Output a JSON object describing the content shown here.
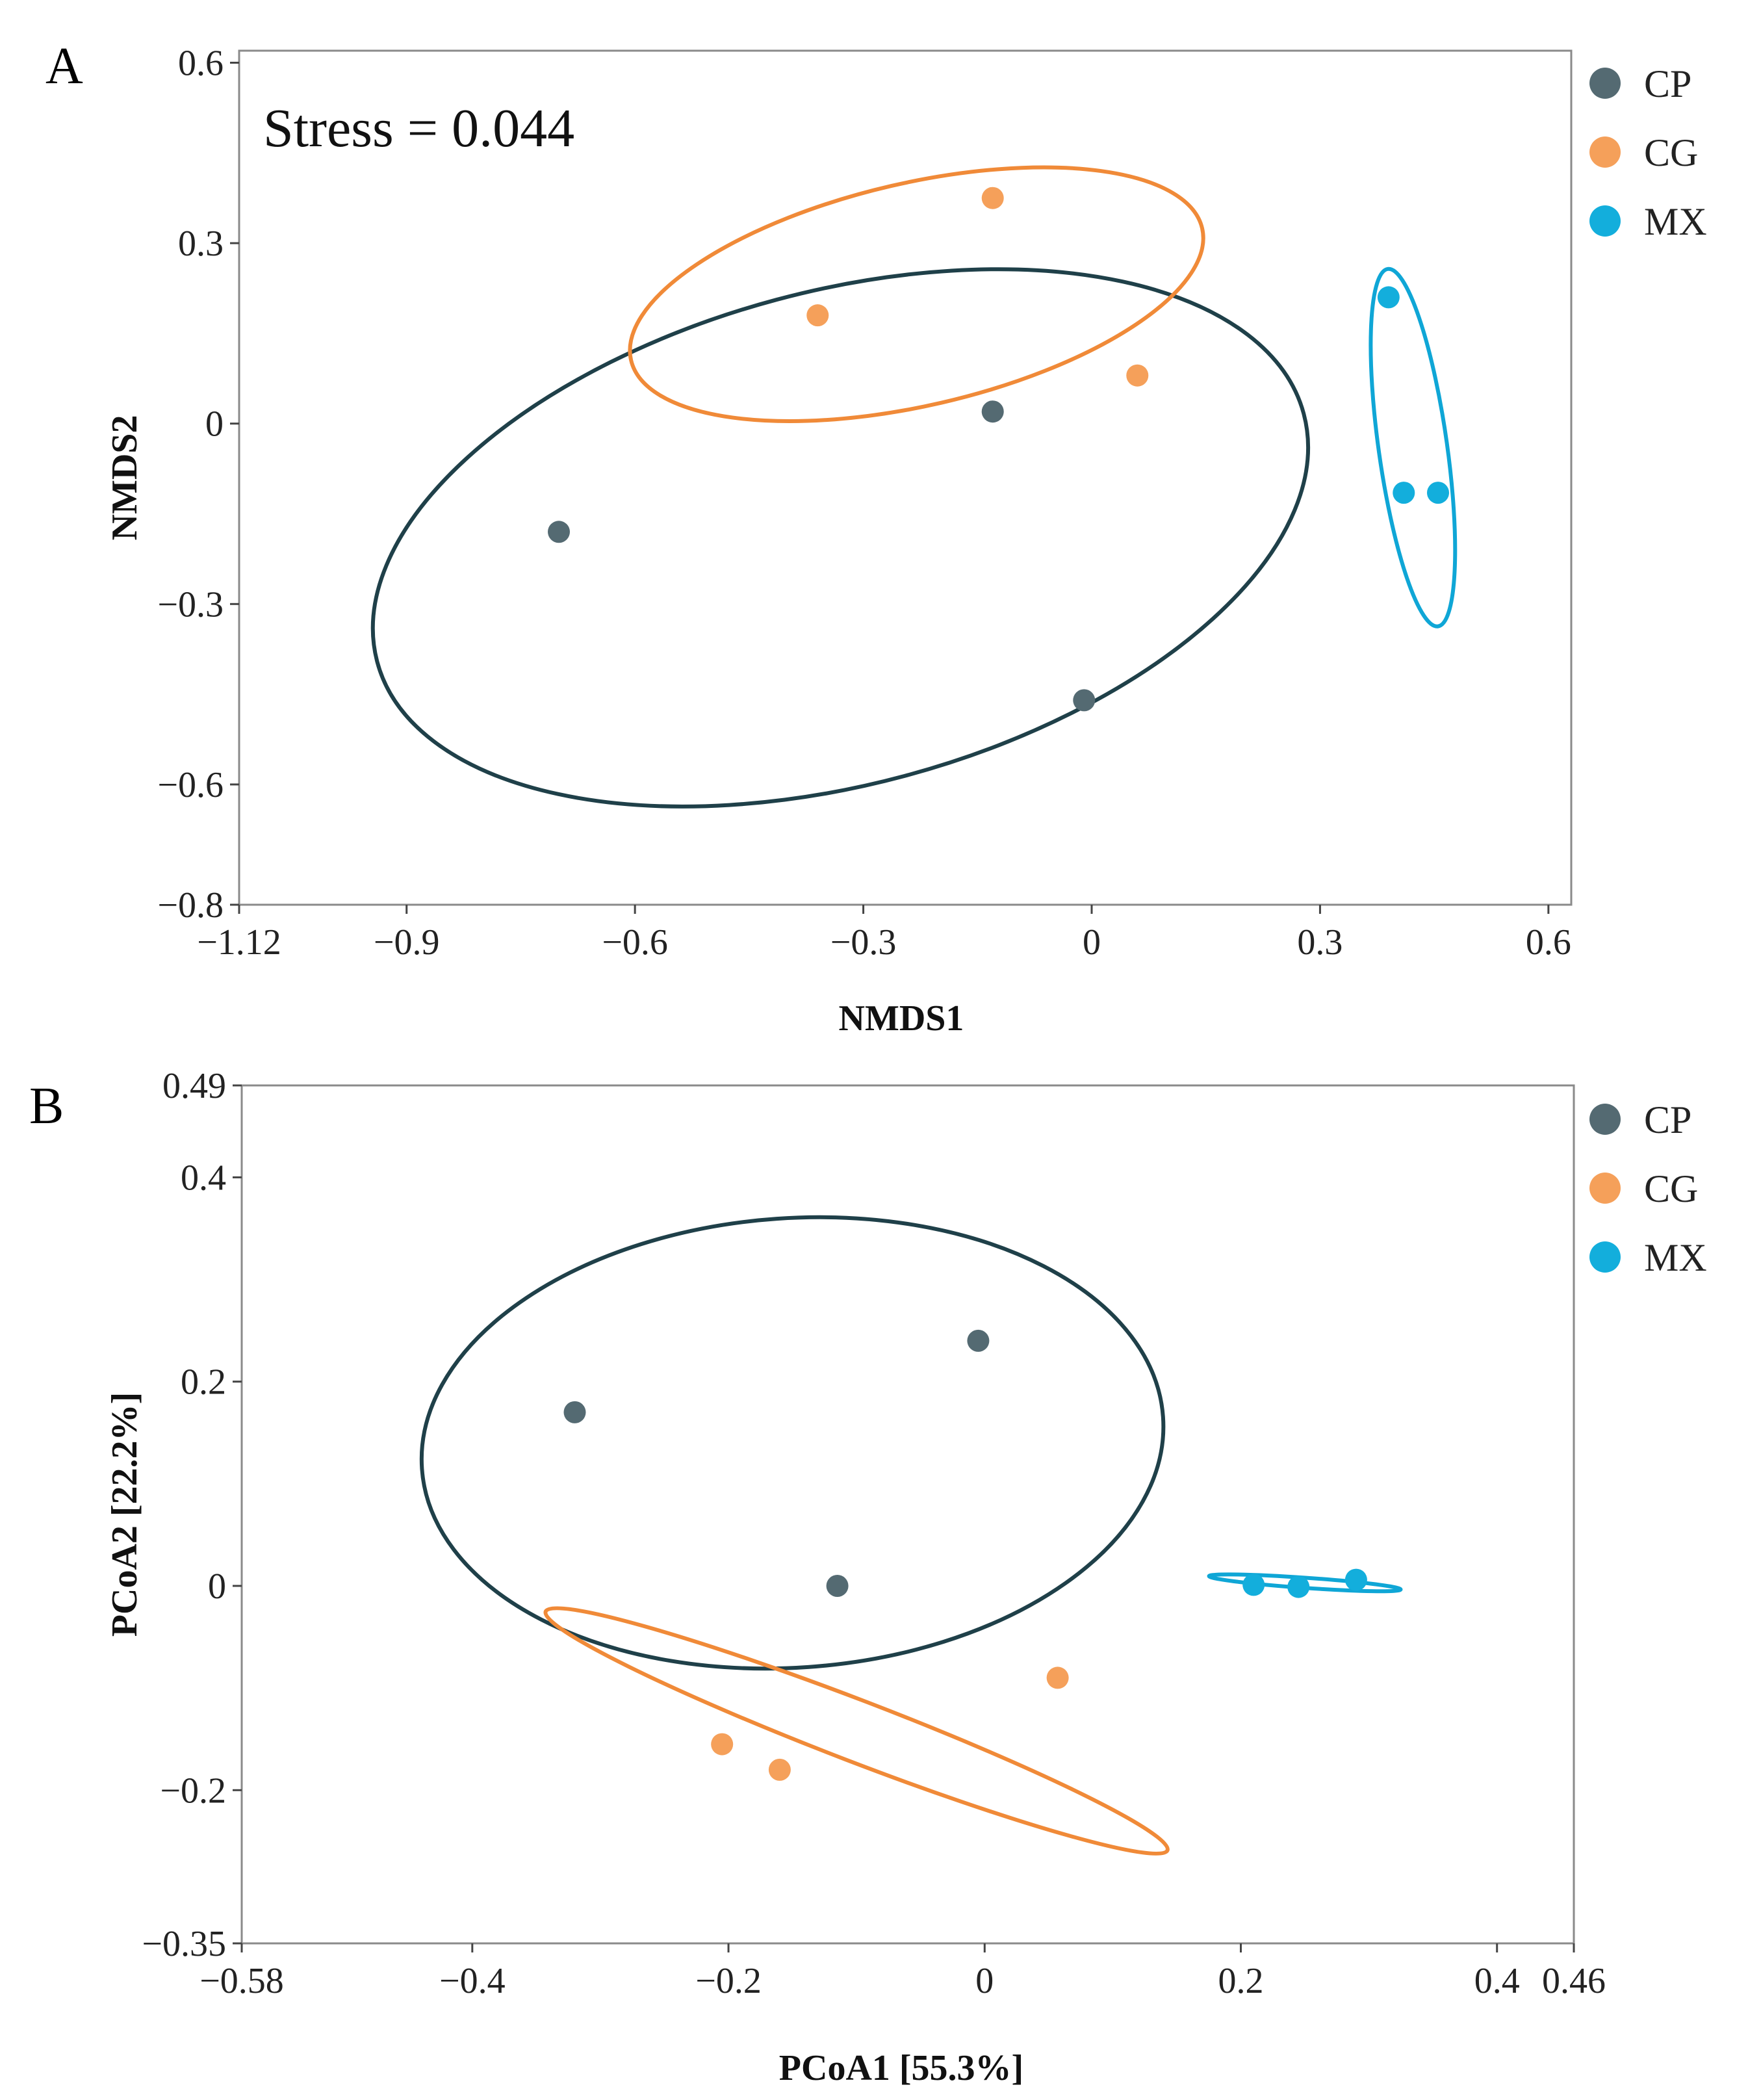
{
  "chart_data": [
    {
      "panel": "A",
      "type": "scatter",
      "title": "",
      "xlabel": "NMDS1",
      "ylabel": "NMDS2",
      "xlim": [
        -1.12,
        0.63
      ],
      "ylim": [
        -0.8,
        0.62
      ],
      "xticks": [
        -1.12,
        -0.9,
        -0.6,
        -0.3,
        0,
        0.3,
        0.6
      ],
      "xtick_labels": [
        "−1.12",
        "−0.9",
        "−0.6",
        "−0.3",
        "0",
        "0.3",
        "0.6"
      ],
      "yticks": [
        -0.8,
        -0.6,
        -0.3,
        0,
        0.3,
        0.6
      ],
      "ytick_labels": [
        "−0.8",
        "−0.6",
        "−0.3",
        "0",
        "0.3",
        "0.6"
      ],
      "annotation": "Stress = 0.044",
      "legend": [
        "CP",
        "CG",
        "MX"
      ],
      "series": [
        {
          "name": "CP",
          "color": "#546a72",
          "ellipse_color": "#1f4049",
          "points": [
            [
              -0.7,
              -0.18
            ],
            [
              -0.13,
              0.02
            ],
            [
              -0.01,
              -0.46
            ]
          ],
          "ellipse": {
            "center": [
              -0.33,
              -0.19
            ],
            "rx": 0.63,
            "ry": 0.41,
            "angle_deg": -15
          }
        },
        {
          "name": "CG",
          "color": "#f5a05a",
          "ellipse_color": "#f08a38",
          "points": [
            [
              -0.36,
              0.18
            ],
            [
              -0.13,
              0.375
            ],
            [
              0.06,
              0.08
            ]
          ],
          "ellipse": {
            "center": [
              -0.23,
              0.215
            ],
            "rx": 0.385,
            "ry": 0.185,
            "angle_deg": -13
          }
        },
        {
          "name": "MX",
          "color": "#13aedc",
          "ellipse_color": "#0fa6d6",
          "points": [
            [
              0.39,
              0.21
            ],
            [
              0.41,
              -0.115
            ],
            [
              0.455,
              -0.115
            ]
          ],
          "ellipse": {
            "center": [
              0.422,
              -0.04
            ],
            "rx": 0.045,
            "ry": 0.3,
            "angle_deg": -8
          }
        }
      ]
    },
    {
      "panel": "B",
      "type": "scatter",
      "title": "",
      "xlabel": "PCoA1 [55.3%]",
      "ylabel": "PCoA2 [22.2%]",
      "xlim": [
        -0.58,
        0.46
      ],
      "ylim": [
        -0.35,
        0.49
      ],
      "xticks": [
        -0.58,
        -0.4,
        -0.2,
        0,
        0.2,
        0.4,
        0.46
      ],
      "xtick_labels": [
        "−0.58",
        "−0.4",
        "−0.2",
        "0",
        "0.2",
        "0.4",
        "0.46"
      ],
      "yticks": [
        -0.35,
        -0.2,
        0,
        0.2,
        0.4,
        0.49
      ],
      "ytick_labels": [
        "−0.35",
        "−0.2",
        "0",
        "0.2",
        "0.4",
        "0.49"
      ],
      "legend": [
        "CP",
        "CG",
        "MX"
      ],
      "series": [
        {
          "name": "CP",
          "color": "#546a72",
          "ellipse_color": "#1f4049",
          "points": [
            [
              -0.32,
              0.17
            ],
            [
              -0.005,
              0.24
            ],
            [
              -0.115,
              0.0
            ]
          ],
          "ellipse": {
            "center": [
              -0.15,
              0.14
            ],
            "rx": 0.29,
            "ry": 0.22,
            "angle_deg": -4
          }
        },
        {
          "name": "CG",
          "color": "#f5a05a",
          "ellipse_color": "#f08a38",
          "points": [
            [
              -0.205,
              -0.155
            ],
            [
              -0.16,
              -0.18
            ],
            [
              0.057,
              -0.09
            ]
          ],
          "ellipse": {
            "center": [
              -0.1,
              -0.142
            ],
            "rx": 0.26,
            "ry": 0.03,
            "angle_deg": 21
          }
        },
        {
          "name": "MX",
          "color": "#13aedc",
          "ellipse_color": "#0fa6d6",
          "points": [
            [
              0.21,
              0.001
            ],
            [
              0.245,
              -0.001
            ],
            [
              0.29,
              0.006
            ]
          ],
          "ellipse": {
            "center": [
              0.25,
              0.003
            ],
            "rx": 0.075,
            "ry": 0.005,
            "angle_deg": 4
          }
        }
      ]
    }
  ],
  "panels": {
    "A": {
      "label": "A"
    },
    "B": {
      "label": "B"
    }
  }
}
